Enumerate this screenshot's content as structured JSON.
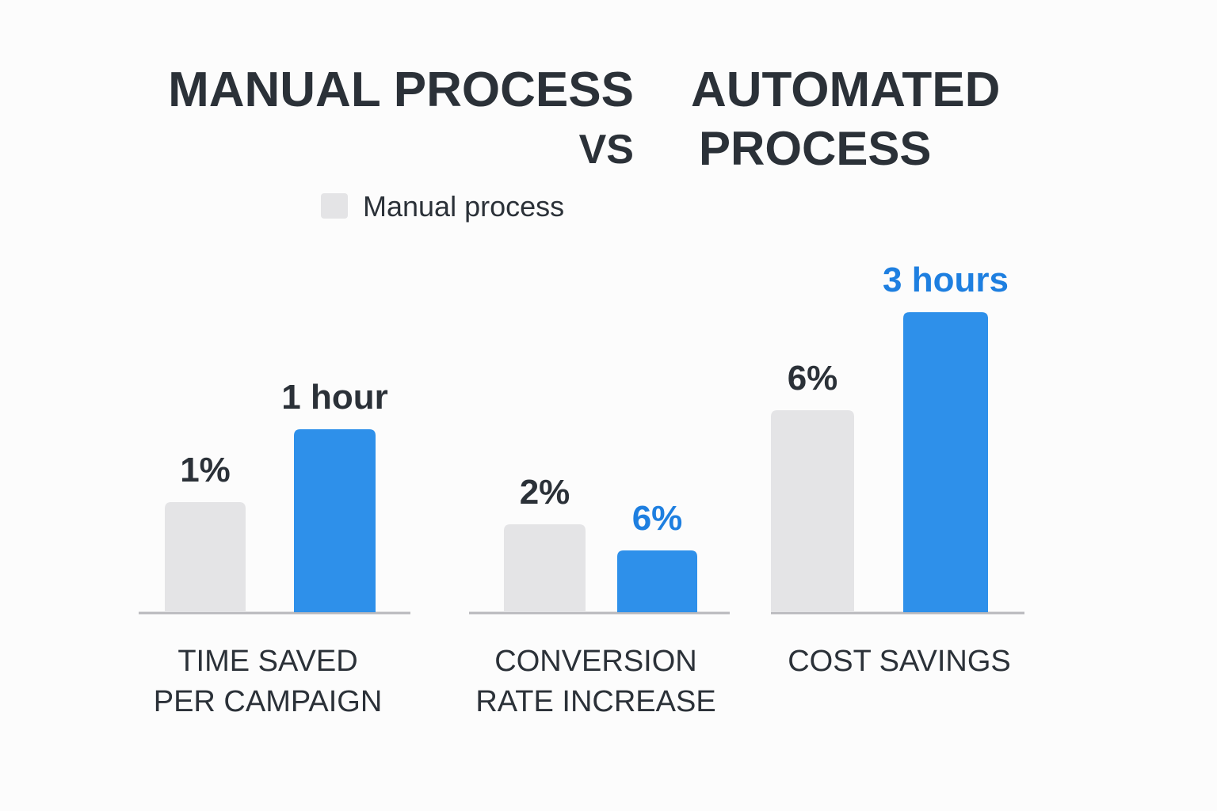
{
  "title": {
    "left_line1": "MANUAL PROCESS",
    "left_line2": "VS",
    "right_line1": "AUTOMATED",
    "right_line2": "PROCESS"
  },
  "legend": {
    "entries": [
      {
        "label": "Manual process",
        "color": "#e4e4e6"
      }
    ]
  },
  "colors": {
    "manual": "#e4e4e6",
    "automated": "#2e90ea",
    "text": "#2b3138",
    "accent_text": "#1e7fe0",
    "baseline": "#b8b8bc"
  },
  "chart_data": {
    "type": "bar",
    "title": "MANUAL PROCESS VS AUTOMATED PROCESS",
    "categories": [
      [
        "TIME SAVED",
        "PER CAMPAIGN"
      ],
      [
        "CONVERSION",
        "RATE INCREASE"
      ],
      [
        "COST SAVINGS"
      ]
    ],
    "series": [
      {
        "name": "Manual process",
        "values": [
          1,
          2,
          6
        ],
        "labels": [
          "1%",
          "2%",
          "6%"
        ],
        "label_color": "text"
      },
      {
        "name": "",
        "values": [
          1,
          6,
          3
        ],
        "labels": [
          "1 hour",
          "6%",
          "3 hours"
        ],
        "label_colors": [
          "text",
          "accent",
          "accent"
        ]
      }
    ],
    "legend": "top-left",
    "grid": false
  }
}
